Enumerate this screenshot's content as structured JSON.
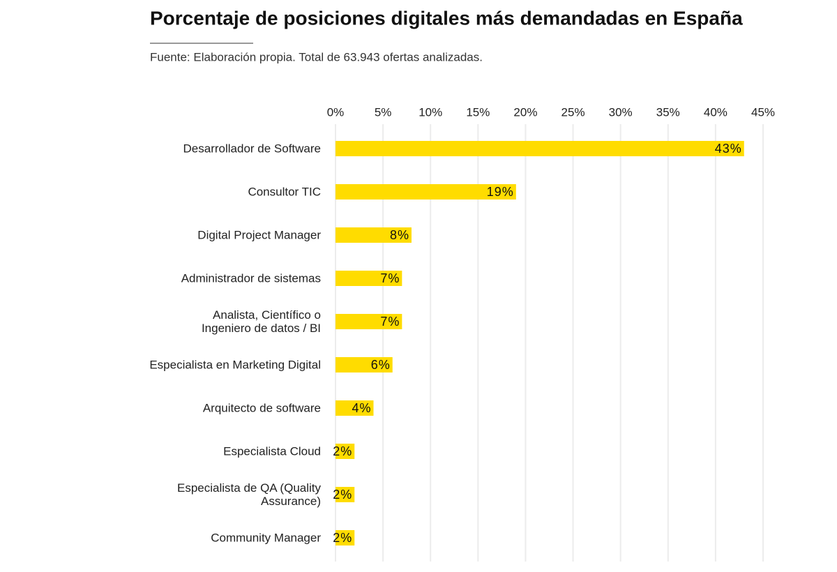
{
  "chart_data": {
    "type": "bar",
    "orientation": "horizontal",
    "title": "Porcentaje de posiciones digitales más demandadas en España",
    "subtitle": "Fuente: Elaboración propia. Total de 63.943 ofertas analizadas.",
    "categories": [
      "Desarrollador de Software",
      "Consultor TIC",
      "Digital Project Manager",
      "Administrador de sistemas",
      "Analista, Científico o\nIngeniero de datos / BI",
      "Especialista en Marketing Digital",
      "Arquitecto de software",
      "Especialista Cloud",
      "Especialista de QA (Quality\nAssurance)",
      "Community Manager"
    ],
    "values": [
      43,
      19,
      8,
      7,
      7,
      6,
      4,
      2,
      2,
      2
    ],
    "value_labels": [
      "43%",
      "19%",
      "8%",
      "7%",
      "7%",
      "6%",
      "4%",
      "2%",
      "2%",
      "2%"
    ],
    "color": "#ffdc00",
    "xlim": [
      0,
      45
    ],
    "xticks": [
      {
        "value": 0,
        "label": "0%"
      },
      {
        "value": 5,
        "label": "5%"
      },
      {
        "value": 10,
        "label": "10%"
      },
      {
        "value": 15,
        "label": "15%"
      },
      {
        "value": 20,
        "label": "20%"
      },
      {
        "value": 25,
        "label": "25%"
      },
      {
        "value": 30,
        "label": "30%"
      },
      {
        "value": 35,
        "label": "35%"
      },
      {
        "value": 40,
        "label": "40%"
      },
      {
        "value": 45,
        "label": "45%"
      }
    ],
    "grid": true
  }
}
